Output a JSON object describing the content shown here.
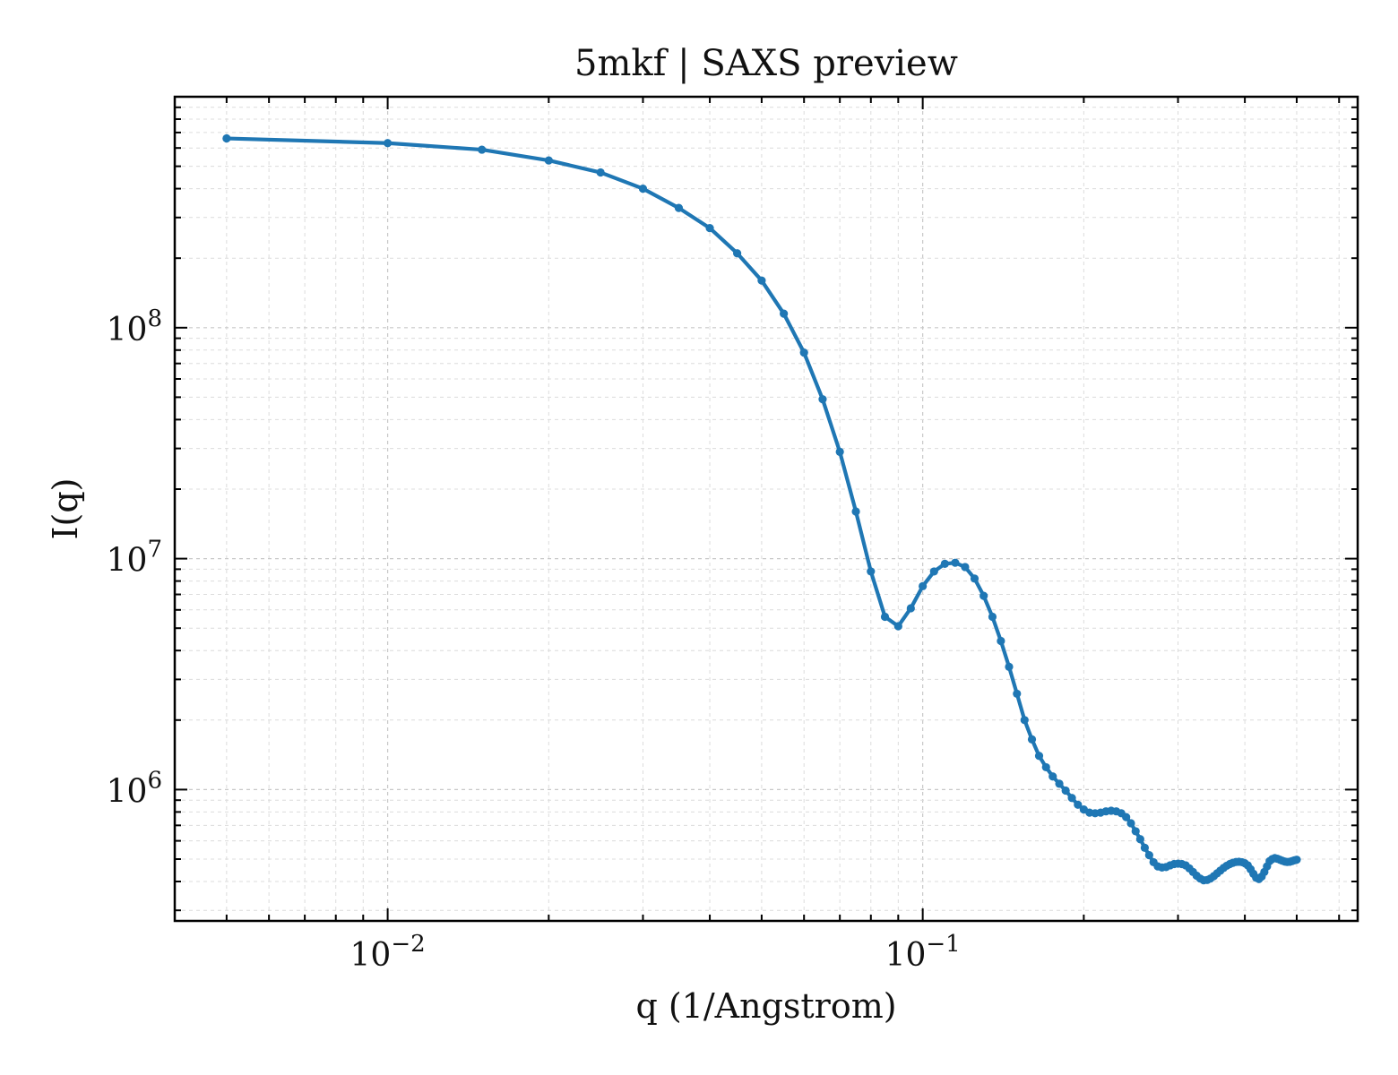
{
  "chart_data": {
    "type": "line",
    "title": "5mkf | SAXS preview",
    "xlabel": "q (1/Angstrom)",
    "ylabel": "I(q)",
    "xscale": "log",
    "yscale": "log",
    "xlim": [
      0.004,
      0.65
    ],
    "ylim": [
      270000,
      1000000000
    ],
    "grid": "on",
    "xticks": [
      {
        "value": 0.01,
        "base": "10",
        "exp": "−2"
      },
      {
        "value": 0.1,
        "base": "10",
        "exp": "−1"
      }
    ],
    "yticks": [
      {
        "value": 1000000,
        "base": "10",
        "exp": "6"
      },
      {
        "value": 10000000,
        "base": "10",
        "exp": "7"
      },
      {
        "value": 100000000,
        "base": "10",
        "exp": "8"
      }
    ],
    "series": [
      {
        "color": "#1f77b4",
        "x": [
          0.005,
          0.01,
          0.015,
          0.02,
          0.025,
          0.03,
          0.035,
          0.04,
          0.045,
          0.05,
          0.055,
          0.06,
          0.065,
          0.07,
          0.075,
          0.08,
          0.085,
          0.09,
          0.095,
          0.1,
          0.105,
          0.11,
          0.115,
          0.12,
          0.125,
          0.13,
          0.135,
          0.14,
          0.145,
          0.15,
          0.155,
          0.16,
          0.165,
          0.17,
          0.175,
          0.18,
          0.185,
          0.19,
          0.195,
          0.2,
          0.205,
          0.21,
          0.215,
          0.22,
          0.225,
          0.23,
          0.235,
          0.24,
          0.245,
          0.25,
          0.255,
          0.26,
          0.265,
          0.27,
          0.275,
          0.28,
          0.285,
          0.29,
          0.295,
          0.3,
          0.305,
          0.31,
          0.315,
          0.32,
          0.325,
          0.33,
          0.335,
          0.34,
          0.345,
          0.35,
          0.355,
          0.36,
          0.365,
          0.37,
          0.375,
          0.38,
          0.385,
          0.39,
          0.395,
          0.4,
          0.405,
          0.41,
          0.415,
          0.42,
          0.425,
          0.43,
          0.435,
          0.44,
          0.445,
          0.45,
          0.455,
          0.46,
          0.465,
          0.47,
          0.475,
          0.48,
          0.485,
          0.49,
          0.495,
          0.5
        ],
        "y": [
          660000000,
          630000000,
          590000000,
          530000000,
          470000000,
          400000000,
          330000000,
          270000000,
          210000000,
          160000000,
          115000000,
          78000000,
          49000000,
          29000000,
          16000000,
          8800000,
          5600000,
          5100000,
          6100000,
          7600000,
          8800000,
          9500000,
          9600000,
          9200000,
          8200000,
          6900000,
          5600000,
          4400000,
          3400000,
          2600000,
          2000000,
          1650000,
          1400000,
          1250000,
          1140000,
          1060000,
          990000,
          920000,
          860000,
          820000,
          795000,
          790000,
          795000,
          805000,
          810000,
          805000,
          790000,
          760000,
          715000,
          660000,
          610000,
          560000,
          520000,
          485000,
          465000,
          460000,
          462000,
          470000,
          476000,
          478000,
          476000,
          470000,
          456000,
          440000,
          424000,
          412000,
          405000,
          406000,
          412000,
          422000,
          434000,
          446000,
          458000,
          468000,
          476000,
          482000,
          486000,
          487000,
          485000,
          480000,
          470000,
          452000,
          432000,
          415000,
          410000,
          420000,
          440000,
          465000,
          490000,
          500000,
          505000,
          502000,
          497000,
          492000,
          488000,
          486000,
          487000,
          490000,
          494000,
          497000
        ]
      }
    ]
  }
}
